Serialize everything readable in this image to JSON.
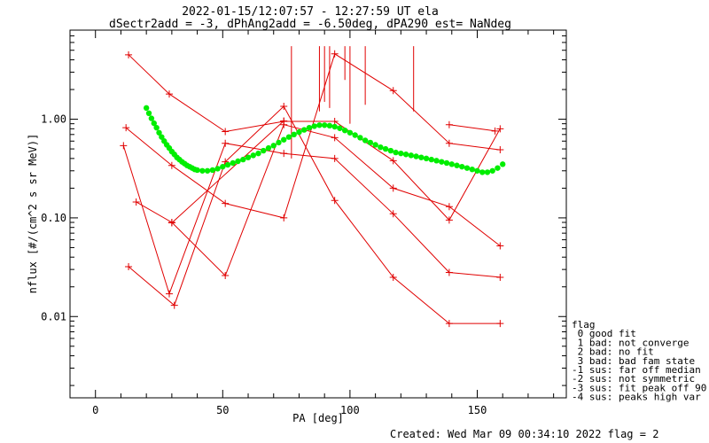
{
  "chart_data": {
    "type": "scatter",
    "title_line1": "2022-01-15/12:07:57 - 12:27:59 UT ela",
    "title_line2": "dSectr2add = -3, dPhAng2add = -6.50deg, dPA290_est=    NaNdeg",
    "xlabel": "PA [deg]",
    "ylabel": "nflux [#/(cm^2 s sr MeV)]",
    "xlim": [
      -10,
      185
    ],
    "ylim": [
      0.0015,
      8
    ],
    "y_scale": "log",
    "x_ticks": [
      0,
      50,
      100,
      150
    ],
    "x_tick_labels": [
      "0",
      "50",
      "100",
      "150"
    ],
    "y_ticks": [
      0.01,
      0.1,
      1.0
    ],
    "y_tick_labels": [
      "0.01",
      "0.10",
      "1.00"
    ],
    "series": [
      {
        "color": "#e00000",
        "x": [
          13,
          29,
          51,
          74,
          94,
          117,
          139,
          159
        ],
        "y": [
          4.5,
          1.8,
          0.75,
          0.95,
          0.95,
          0.38,
          0.095,
          0.8
        ]
      },
      {
        "color": "#e00000",
        "x": [
          12,
          30,
          51,
          74,
          94,
          117,
          139,
          159
        ],
        "y": [
          0.82,
          0.34,
          0.14,
          0.1,
          4.6,
          1.95,
          0.57,
          0.49
        ]
      },
      {
        "color": "#e00000",
        "x": [
          11,
          29,
          51,
          74,
          94,
          117,
          139,
          159
        ],
        "y": [
          0.54,
          0.017,
          0.57,
          0.45,
          0.4,
          0.11,
          0.028,
          0.025
        ]
      },
      {
        "color": "#e00000",
        "x": [
          16,
          30,
          51,
          74,
          94,
          117,
          139,
          159
        ],
        "y": [
          0.145,
          0.09,
          0.026,
          0.88,
          0.65,
          0.2,
          0.13,
          0.052
        ]
      },
      {
        "color": "#e00000",
        "x": [
          13,
          31,
          51,
          74,
          94,
          117,
          139,
          159
        ],
        "y": [
          0.032,
          0.013,
          0.37,
          1.35,
          0.15,
          0.025,
          0.0085,
          0.0085
        ]
      },
      {
        "color": "#e00000",
        "x": [
          30,
          74
        ],
        "y": [
          0.089,
          0.96
        ]
      },
      {
        "color": "#e00000",
        "x": [
          139,
          157
        ],
        "y": [
          0.88,
          0.76
        ]
      }
    ],
    "verticals_x": [
      77,
      88,
      90,
      92,
      98,
      100,
      106,
      125
    ],
    "verticals_top_y": 5.5,
    "verticals_bottom_y": [
      0.4,
      1.2,
      1.5,
      1.3,
      2.5,
      0.9,
      1.4,
      1.2
    ],
    "fit": {
      "color": "#00ee00",
      "x": [
        20,
        21,
        22,
        23,
        24,
        25,
        26,
        27,
        28,
        29,
        30,
        31,
        32,
        33,
        34,
        35,
        36,
        37,
        38,
        39,
        40,
        42,
        44,
        46,
        48,
        50,
        52,
        54,
        56,
        58,
        60,
        62,
        64,
        66,
        68,
        70,
        72,
        74,
        76,
        78,
        80,
        82,
        84,
        86,
        88,
        90,
        92,
        94,
        96,
        98,
        100,
        102,
        104,
        106,
        108,
        110,
        112,
        114,
        116,
        118,
        120,
        122,
        124,
        126,
        128,
        130,
        132,
        134,
        136,
        138,
        140,
        142,
        144,
        146,
        148,
        150,
        152,
        154,
        156,
        158,
        160
      ],
      "y": [
        1.3,
        1.15,
        1.02,
        0.91,
        0.82,
        0.73,
        0.66,
        0.6,
        0.55,
        0.51,
        0.47,
        0.44,
        0.41,
        0.39,
        0.37,
        0.355,
        0.34,
        0.33,
        0.32,
        0.31,
        0.305,
        0.3,
        0.3,
        0.305,
        0.315,
        0.33,
        0.345,
        0.36,
        0.375,
        0.39,
        0.41,
        0.43,
        0.45,
        0.48,
        0.51,
        0.54,
        0.58,
        0.62,
        0.66,
        0.7,
        0.74,
        0.78,
        0.82,
        0.85,
        0.87,
        0.87,
        0.86,
        0.84,
        0.81,
        0.77,
        0.73,
        0.69,
        0.65,
        0.61,
        0.58,
        0.55,
        0.52,
        0.5,
        0.48,
        0.46,
        0.45,
        0.44,
        0.43,
        0.42,
        0.41,
        0.4,
        0.39,
        0.38,
        0.37,
        0.36,
        0.35,
        0.34,
        0.33,
        0.32,
        0.31,
        0.3,
        0.29,
        0.29,
        0.3,
        0.32,
        0.35
      ]
    },
    "legend_placement": "right",
    "legend": [
      "flag",
      " 0 good fit",
      " 1 bad: not converge",
      " 2 bad: no fit",
      " 3 bad: bad fam state",
      "-1 sus: far off median",
      "-2 sus: not symmetric",
      "-3 sus: fit peak off 90",
      "-4 sus: peaks high var"
    ],
    "footer": "Created: Wed Mar 09 00:34:10 2022   flag = 2"
  }
}
